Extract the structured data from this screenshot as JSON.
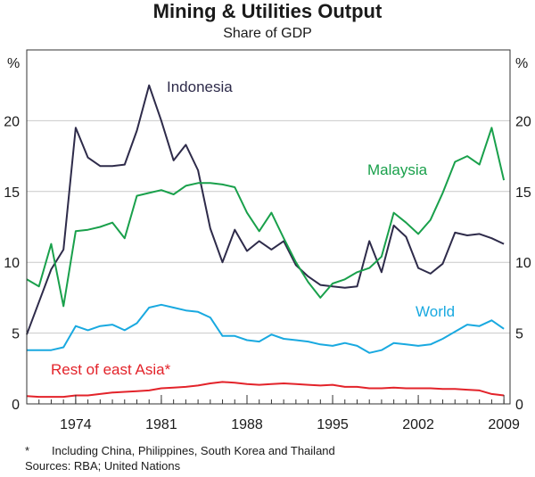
{
  "chart_data": {
    "type": "line",
    "title": "Mining & Utilities Output",
    "subtitle": "Share of GDP",
    "ylabel_left": "%",
    "ylabel_right": "%",
    "ylim": [
      0,
      25
    ],
    "y_ticks": [
      0,
      5,
      10,
      15,
      20
    ],
    "xlim": [
      1970,
      2009.5
    ],
    "x_ticks": [
      1974,
      1981,
      1988,
      1995,
      2002,
      2009
    ],
    "x_tick_labels": [
      "1974",
      "1981",
      "1988",
      "1995",
      "2002",
      "2009"
    ],
    "x": [
      1970,
      1971,
      1972,
      1973,
      1974,
      1975,
      1976,
      1977,
      1978,
      1979,
      1980,
      1981,
      1982,
      1983,
      1984,
      1985,
      1986,
      1987,
      1988,
      1989,
      1990,
      1991,
      1992,
      1993,
      1994,
      1995,
      1996,
      1997,
      1998,
      1999,
      2000,
      2001,
      2002,
      2003,
      2004,
      2005,
      2006,
      2007,
      2008,
      2009
    ],
    "series": [
      {
        "name": "Indonesia",
        "label": "Indonesia",
        "color": "#2e2b4a",
        "values": [
          4.9,
          7.2,
          9.5,
          10.9,
          19.5,
          17.4,
          16.8,
          16.8,
          16.9,
          19.3,
          22.5,
          20.0,
          17.2,
          18.3,
          16.5,
          12.4,
          10.0,
          12.3,
          10.8,
          11.5,
          10.9,
          11.5,
          9.8,
          9.0,
          8.4,
          8.3,
          8.2,
          8.3,
          11.5,
          9.3,
          12.6,
          11.8,
          9.6,
          9.2,
          9.9,
          12.1,
          11.9,
          12.0,
          11.7,
          11.3
        ]
      },
      {
        "name": "Malaysia",
        "label": "Malaysia",
        "color": "#19a04b",
        "values": [
          8.8,
          8.3,
          11.3,
          6.9,
          12.2,
          12.3,
          12.5,
          12.8,
          11.7,
          14.7,
          14.9,
          15.1,
          14.8,
          15.4,
          15.6,
          15.6,
          15.5,
          15.3,
          13.5,
          12.2,
          13.5,
          11.7,
          10.0,
          8.6,
          7.5,
          8.5,
          8.8,
          9.3,
          9.6,
          10.4,
          13.5,
          12.8,
          12.0,
          13.0,
          14.9,
          17.1,
          17.5,
          16.9,
          19.5,
          15.8
        ]
      },
      {
        "name": "World",
        "label": "World",
        "color": "#19a9e0",
        "values": [
          3.8,
          3.8,
          3.8,
          4.0,
          5.5,
          5.2,
          5.5,
          5.6,
          5.2,
          5.7,
          6.8,
          7.0,
          6.8,
          6.6,
          6.5,
          6.1,
          4.8,
          4.8,
          4.5,
          4.4,
          4.9,
          4.6,
          4.5,
          4.4,
          4.2,
          4.1,
          4.3,
          4.1,
          3.6,
          3.8,
          4.3,
          4.2,
          4.1,
          4.2,
          4.6,
          5.1,
          5.6,
          5.5,
          5.9,
          5.3
        ]
      },
      {
        "name": "Rest of east Asia*",
        "label": "Rest of east Asia*",
        "color": "#e3232a",
        "values": [
          0.55,
          0.5,
          0.5,
          0.5,
          0.6,
          0.6,
          0.7,
          0.8,
          0.85,
          0.9,
          0.95,
          1.1,
          1.15,
          1.2,
          1.3,
          1.45,
          1.55,
          1.5,
          1.4,
          1.35,
          1.4,
          1.45,
          1.4,
          1.35,
          1.3,
          1.35,
          1.2,
          1.2,
          1.1,
          1.1,
          1.15,
          1.1,
          1.1,
          1.1,
          1.05,
          1.05,
          1.0,
          0.95,
          0.7,
          0.6
        ]
      }
    ]
  },
  "footnotes": {
    "star": "*",
    "note": "Including China, Philippines, South Korea and Thailand",
    "sources": "Sources: RBA; United Nations"
  }
}
